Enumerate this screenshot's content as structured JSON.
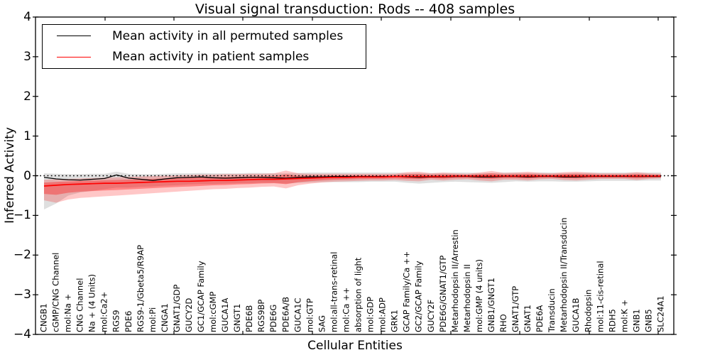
{
  "title": "Visual signal transduction: Rods -- 408 samples",
  "axes": {
    "ylabel": "Inferred Activity",
    "xlabel": "Cellular Entities",
    "yticks": [
      "4",
      "3",
      "2",
      "1",
      "0",
      "−1",
      "−2",
      "−3",
      "−4"
    ],
    "ylim": [
      -4,
      4
    ]
  },
  "legend": {
    "items": [
      {
        "label": "Mean activity in all permuted samples",
        "color": "#000000"
      },
      {
        "label": "Mean activity in patient samples",
        "color": "#ff0000"
      }
    ]
  },
  "chart_data": {
    "type": "line",
    "title": "Visual signal transduction: Rods -- 408 samples",
    "xlabel": "Cellular Entities",
    "ylabel": "Inferred Activity",
    "ylim": [
      -4,
      4
    ],
    "grid": false,
    "legend_position": "upper left",
    "reference_line": {
      "y": 0,
      "style": "dotted",
      "color": "#000000"
    },
    "categories": [
      "CNGB1",
      "cGMP/CNG Channel",
      "mol:Na +",
      "CNG Channel",
      "Na + (4 Units)",
      "mol:Ca2+",
      "RGS9",
      "PDE6",
      "RGS9-1/Gbeta5/R9AP",
      "mol:Pi",
      "CNGA1",
      "GNAT1/GDP",
      "GUCY2D",
      "GC1/GCAP Family",
      "mol:cGMP",
      "GUCA1A",
      "GNGT1",
      "PDE6B",
      "RGS9BP",
      "PDE6G",
      "PDE6A/B",
      "GUCA1C",
      "mol:GTP",
      "SAG",
      "mol:all-trans-retinal",
      "mol:Ca ++",
      "absorption of light",
      "mol:GDP",
      "mol:ADP",
      "GRK1",
      "GCAP Family/Ca ++",
      "GC2/GCAP Family",
      "GUCY2F",
      "PDE6G/GNAT1/GTP",
      "Metarhodopsin II/Arrestin",
      "Metarhodopsin II",
      "mol:GMP (4 units)",
      "GNB1/GNGT1",
      "RHO",
      "GNAT1/GTP",
      "GNAT1",
      "PDE6A",
      "Transducin",
      "Metarhodopsin II/Transducin",
      "GUCA1B",
      "Rhodopsin",
      "mol:11-cis-retinal",
      "RDH5",
      "mol:K +",
      "GNB1",
      "GNB5",
      "SLC24A1"
    ],
    "series": [
      {
        "name": "Mean activity in all permuted samples",
        "color": "#000000",
        "values": [
          -0.04,
          -0.08,
          -0.1,
          -0.11,
          -0.09,
          -0.07,
          0.02,
          -0.06,
          -0.09,
          -0.12,
          -0.08,
          -0.05,
          -0.04,
          -0.03,
          -0.05,
          -0.06,
          -0.05,
          -0.04,
          -0.04,
          -0.05,
          -0.06,
          -0.04,
          -0.03,
          -0.03,
          -0.02,
          -0.02,
          -0.02,
          -0.02,
          -0.02,
          -0.02,
          -0.03,
          -0.04,
          -0.03,
          -0.03,
          -0.02,
          -0.02,
          -0.03,
          -0.03,
          -0.02,
          -0.02,
          -0.03,
          -0.02,
          -0.02,
          -0.03,
          -0.03,
          -0.02,
          -0.02,
          -0.02,
          -0.02,
          -0.02,
          -0.02,
          -0.02
        ]
      },
      {
        "name": "Mean activity in patient samples",
        "color": "#ff0000",
        "values": [
          -0.26,
          -0.24,
          -0.22,
          -0.21,
          -0.2,
          -0.19,
          -0.19,
          -0.18,
          -0.17,
          -0.16,
          -0.15,
          -0.14,
          -0.14,
          -0.13,
          -0.12,
          -0.12,
          -0.11,
          -0.1,
          -0.09,
          -0.09,
          -0.08,
          -0.07,
          -0.06,
          -0.05,
          -0.04,
          -0.04,
          -0.03,
          -0.03,
          -0.03,
          -0.02,
          -0.02,
          -0.02,
          -0.02,
          -0.02,
          -0.01,
          -0.01,
          -0.01,
          -0.01,
          -0.01,
          -0.01,
          -0.01,
          -0.01,
          -0.01,
          -0.01,
          -0.01,
          -0.01,
          -0.01,
          -0.01,
          -0.01,
          -0.01,
          -0.01,
          -0.01
        ]
      }
    ],
    "bands": [
      {
        "name": "permuted-range",
        "color": "#8c8c8c",
        "alpha": 0.28,
        "upper": [
          0.06,
          0.05,
          0.04,
          0.04,
          0.05,
          0.05,
          0.1,
          0.05,
          0.04,
          0.04,
          0.05,
          0.06,
          0.06,
          0.07,
          0.06,
          0.06,
          0.06,
          0.07,
          0.07,
          0.06,
          0.06,
          0.07,
          0.08,
          0.08,
          0.08,
          0.08,
          0.08,
          0.08,
          0.08,
          0.08,
          0.07,
          0.07,
          0.07,
          0.07,
          0.08,
          0.08,
          0.07,
          0.07,
          0.08,
          0.08,
          0.07,
          0.08,
          0.08,
          0.07,
          0.07,
          0.08,
          0.08,
          0.08,
          0.08,
          0.08,
          0.08,
          0.08
        ],
        "lower": [
          -0.85,
          -0.7,
          -0.5,
          -0.42,
          -0.38,
          -0.34,
          -0.3,
          -0.3,
          -0.28,
          -0.27,
          -0.25,
          -0.24,
          -0.22,
          -0.21,
          -0.21,
          -0.2,
          -0.19,
          -0.19,
          -0.18,
          -0.18,
          -0.2,
          -0.18,
          -0.17,
          -0.16,
          -0.16,
          -0.16,
          -0.16,
          -0.15,
          -0.15,
          -0.15,
          -0.18,
          -0.2,
          -0.18,
          -0.16,
          -0.15,
          -0.16,
          -0.17,
          -0.18,
          -0.16,
          -0.14,
          -0.15,
          -0.14,
          -0.14,
          -0.15,
          -0.15,
          -0.14,
          -0.13,
          -0.13,
          -0.13,
          -0.13,
          -0.12,
          -0.12
        ]
      },
      {
        "name": "patient-range",
        "color": "#ff0000",
        "alpha": 0.22,
        "upper": [
          -0.1,
          -0.09,
          -0.08,
          -0.07,
          -0.06,
          -0.05,
          -0.04,
          -0.03,
          -0.02,
          -0.01,
          0.0,
          0.01,
          0.02,
          0.03,
          0.03,
          0.04,
          0.04,
          0.05,
          0.05,
          0.06,
          0.13,
          0.06,
          0.05,
          0.05,
          0.05,
          0.05,
          0.05,
          0.05,
          0.05,
          0.05,
          0.09,
          0.1,
          0.06,
          0.08,
          0.06,
          0.05,
          0.08,
          0.12,
          0.07,
          0.08,
          0.1,
          0.07,
          0.06,
          0.09,
          0.1,
          0.08,
          0.06,
          0.06,
          0.06,
          0.09,
          0.06,
          0.05
        ],
        "lower": [
          -0.62,
          -0.68,
          -0.6,
          -0.56,
          -0.54,
          -0.52,
          -0.5,
          -0.48,
          -0.46,
          -0.44,
          -0.42,
          -0.4,
          -0.38,
          -0.36,
          -0.34,
          -0.33,
          -0.31,
          -0.3,
          -0.28,
          -0.27,
          -0.32,
          -0.24,
          -0.2,
          -0.17,
          -0.15,
          -0.14,
          -0.13,
          -0.12,
          -0.12,
          -0.11,
          -0.13,
          -0.14,
          -0.1,
          -0.12,
          -0.1,
          -0.09,
          -0.12,
          -0.14,
          -0.1,
          -0.1,
          -0.12,
          -0.09,
          -0.08,
          -0.11,
          -0.12,
          -0.1,
          -0.08,
          -0.08,
          -0.08,
          -0.11,
          -0.08,
          -0.07
        ]
      }
    ]
  }
}
